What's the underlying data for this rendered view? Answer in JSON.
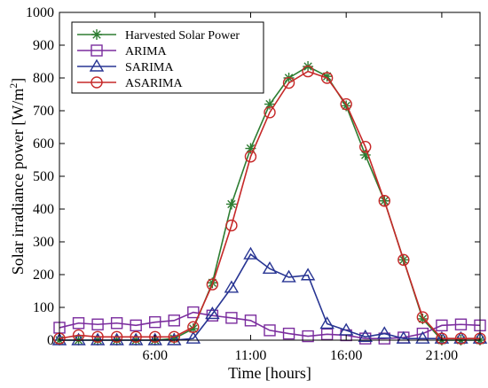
{
  "chart_data": {
    "type": "line",
    "xlabel": "Time [hours]",
    "ylabel": "Solar irradiance power [W/m",
    "ylabel_superscript": "2",
    "ylabel_suffix": "]",
    "xlim": [
      1,
      23
    ],
    "ylim": [
      0,
      1000
    ],
    "xticks": [
      6,
      11,
      16,
      21
    ],
    "xtick_labels": [
      "6:00",
      "11:00",
      "16:00",
      "21:00"
    ],
    "yticks": [
      0,
      100,
      200,
      300,
      400,
      500,
      600,
      700,
      800,
      900,
      1000
    ],
    "ytick_labels": [
      "0",
      "100",
      "200",
      "300",
      "400",
      "500",
      "600",
      "700",
      "800",
      "900",
      "1000"
    ],
    "grid": false,
    "legend_position": "top-left",
    "x": [
      1,
      2,
      3,
      4,
      5,
      6,
      7,
      8,
      9,
      10,
      11,
      12,
      13,
      14,
      15,
      16,
      17,
      18,
      19,
      20,
      21,
      22,
      23
    ],
    "series": [
      {
        "name": "Harvested Solar Power",
        "color": "#2e7d32",
        "marker": "star",
        "values": [
          0,
          0,
          0,
          0,
          0,
          0,
          5,
          35,
          175,
          415,
          585,
          720,
          800,
          835,
          805,
          715,
          565,
          425,
          245,
          65,
          0,
          0,
          0
        ]
      },
      {
        "name": "ARIMA",
        "color": "#7b2d9e",
        "marker": "square",
        "values": [
          38,
          52,
          48,
          52,
          45,
          55,
          60,
          85,
          75,
          68,
          60,
          30,
          20,
          12,
          18,
          15,
          5,
          5,
          8,
          20,
          45,
          48,
          45
        ]
      },
      {
        "name": "SARIMA",
        "color": "#283593",
        "marker": "triangle",
        "values": [
          0,
          0,
          0,
          0,
          0,
          0,
          0,
          5,
          80,
          160,
          262,
          218,
          192,
          198,
          50,
          30,
          10,
          20,
          5,
          5,
          5,
          5,
          5
        ]
      },
      {
        "name": "ASARIMA",
        "color": "#c62828",
        "marker": "circle",
        "values": [
          5,
          15,
          10,
          10,
          10,
          10,
          10,
          40,
          170,
          350,
          560,
          695,
          785,
          820,
          800,
          720,
          590,
          425,
          245,
          70,
          5,
          5,
          5
        ]
      }
    ]
  }
}
